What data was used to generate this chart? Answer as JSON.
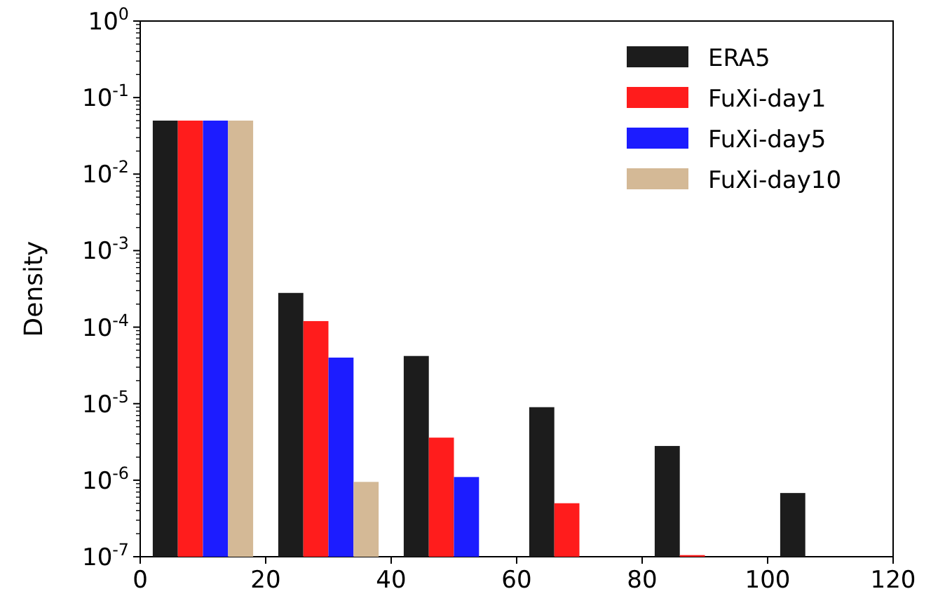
{
  "chart_data": {
    "type": "histogram",
    "ylabel": "Density",
    "bins": [
      0,
      20,
      40,
      60,
      80,
      100,
      120
    ],
    "series": [
      {
        "name": "ERA5",
        "color": "#1c1c1c",
        "values": [
          0.05,
          0.00028,
          4.2e-05,
          9e-06,
          2.8e-06,
          6.8e-07
        ]
      },
      {
        "name": "FuXi-day1",
        "color": "#ff1c1c",
        "values": [
          0.05,
          0.00012,
          3.6e-06,
          5e-07,
          1.05e-07,
          null
        ]
      },
      {
        "name": "FuXi-day5",
        "color": "#1c1cff",
        "values": [
          0.05,
          4e-05,
          1.1e-06,
          null,
          null,
          null
        ]
      },
      {
        "name": "FuXi-day10",
        "color": "#d4b996",
        "values": [
          0.05,
          9.5e-07,
          null,
          null,
          null,
          null
        ]
      }
    ],
    "xlim": [
      0,
      120
    ],
    "xticks": [
      0,
      20,
      40,
      60,
      80,
      100,
      120
    ],
    "ylim": [
      1e-07,
      1
    ],
    "log": true,
    "yticks": [
      {
        "value": 1e-07,
        "label": "10$^{-7}$"
      },
      {
        "value": 1e-06,
        "label": "10$^{-6}$"
      },
      {
        "value": 1e-05,
        "label": "10$^{-5}$"
      },
      {
        "value": 0.0001,
        "label": "10$^{-4}$"
      },
      {
        "value": 0.001,
        "label": "10$^{-3}$"
      },
      {
        "value": 0.01,
        "label": "10$^{-2}$"
      },
      {
        "value": 0.1,
        "label": "10$^{-1}$"
      },
      {
        "value": 1,
        "label": "10$^{0}$"
      }
    ],
    "legend": "top right"
  }
}
